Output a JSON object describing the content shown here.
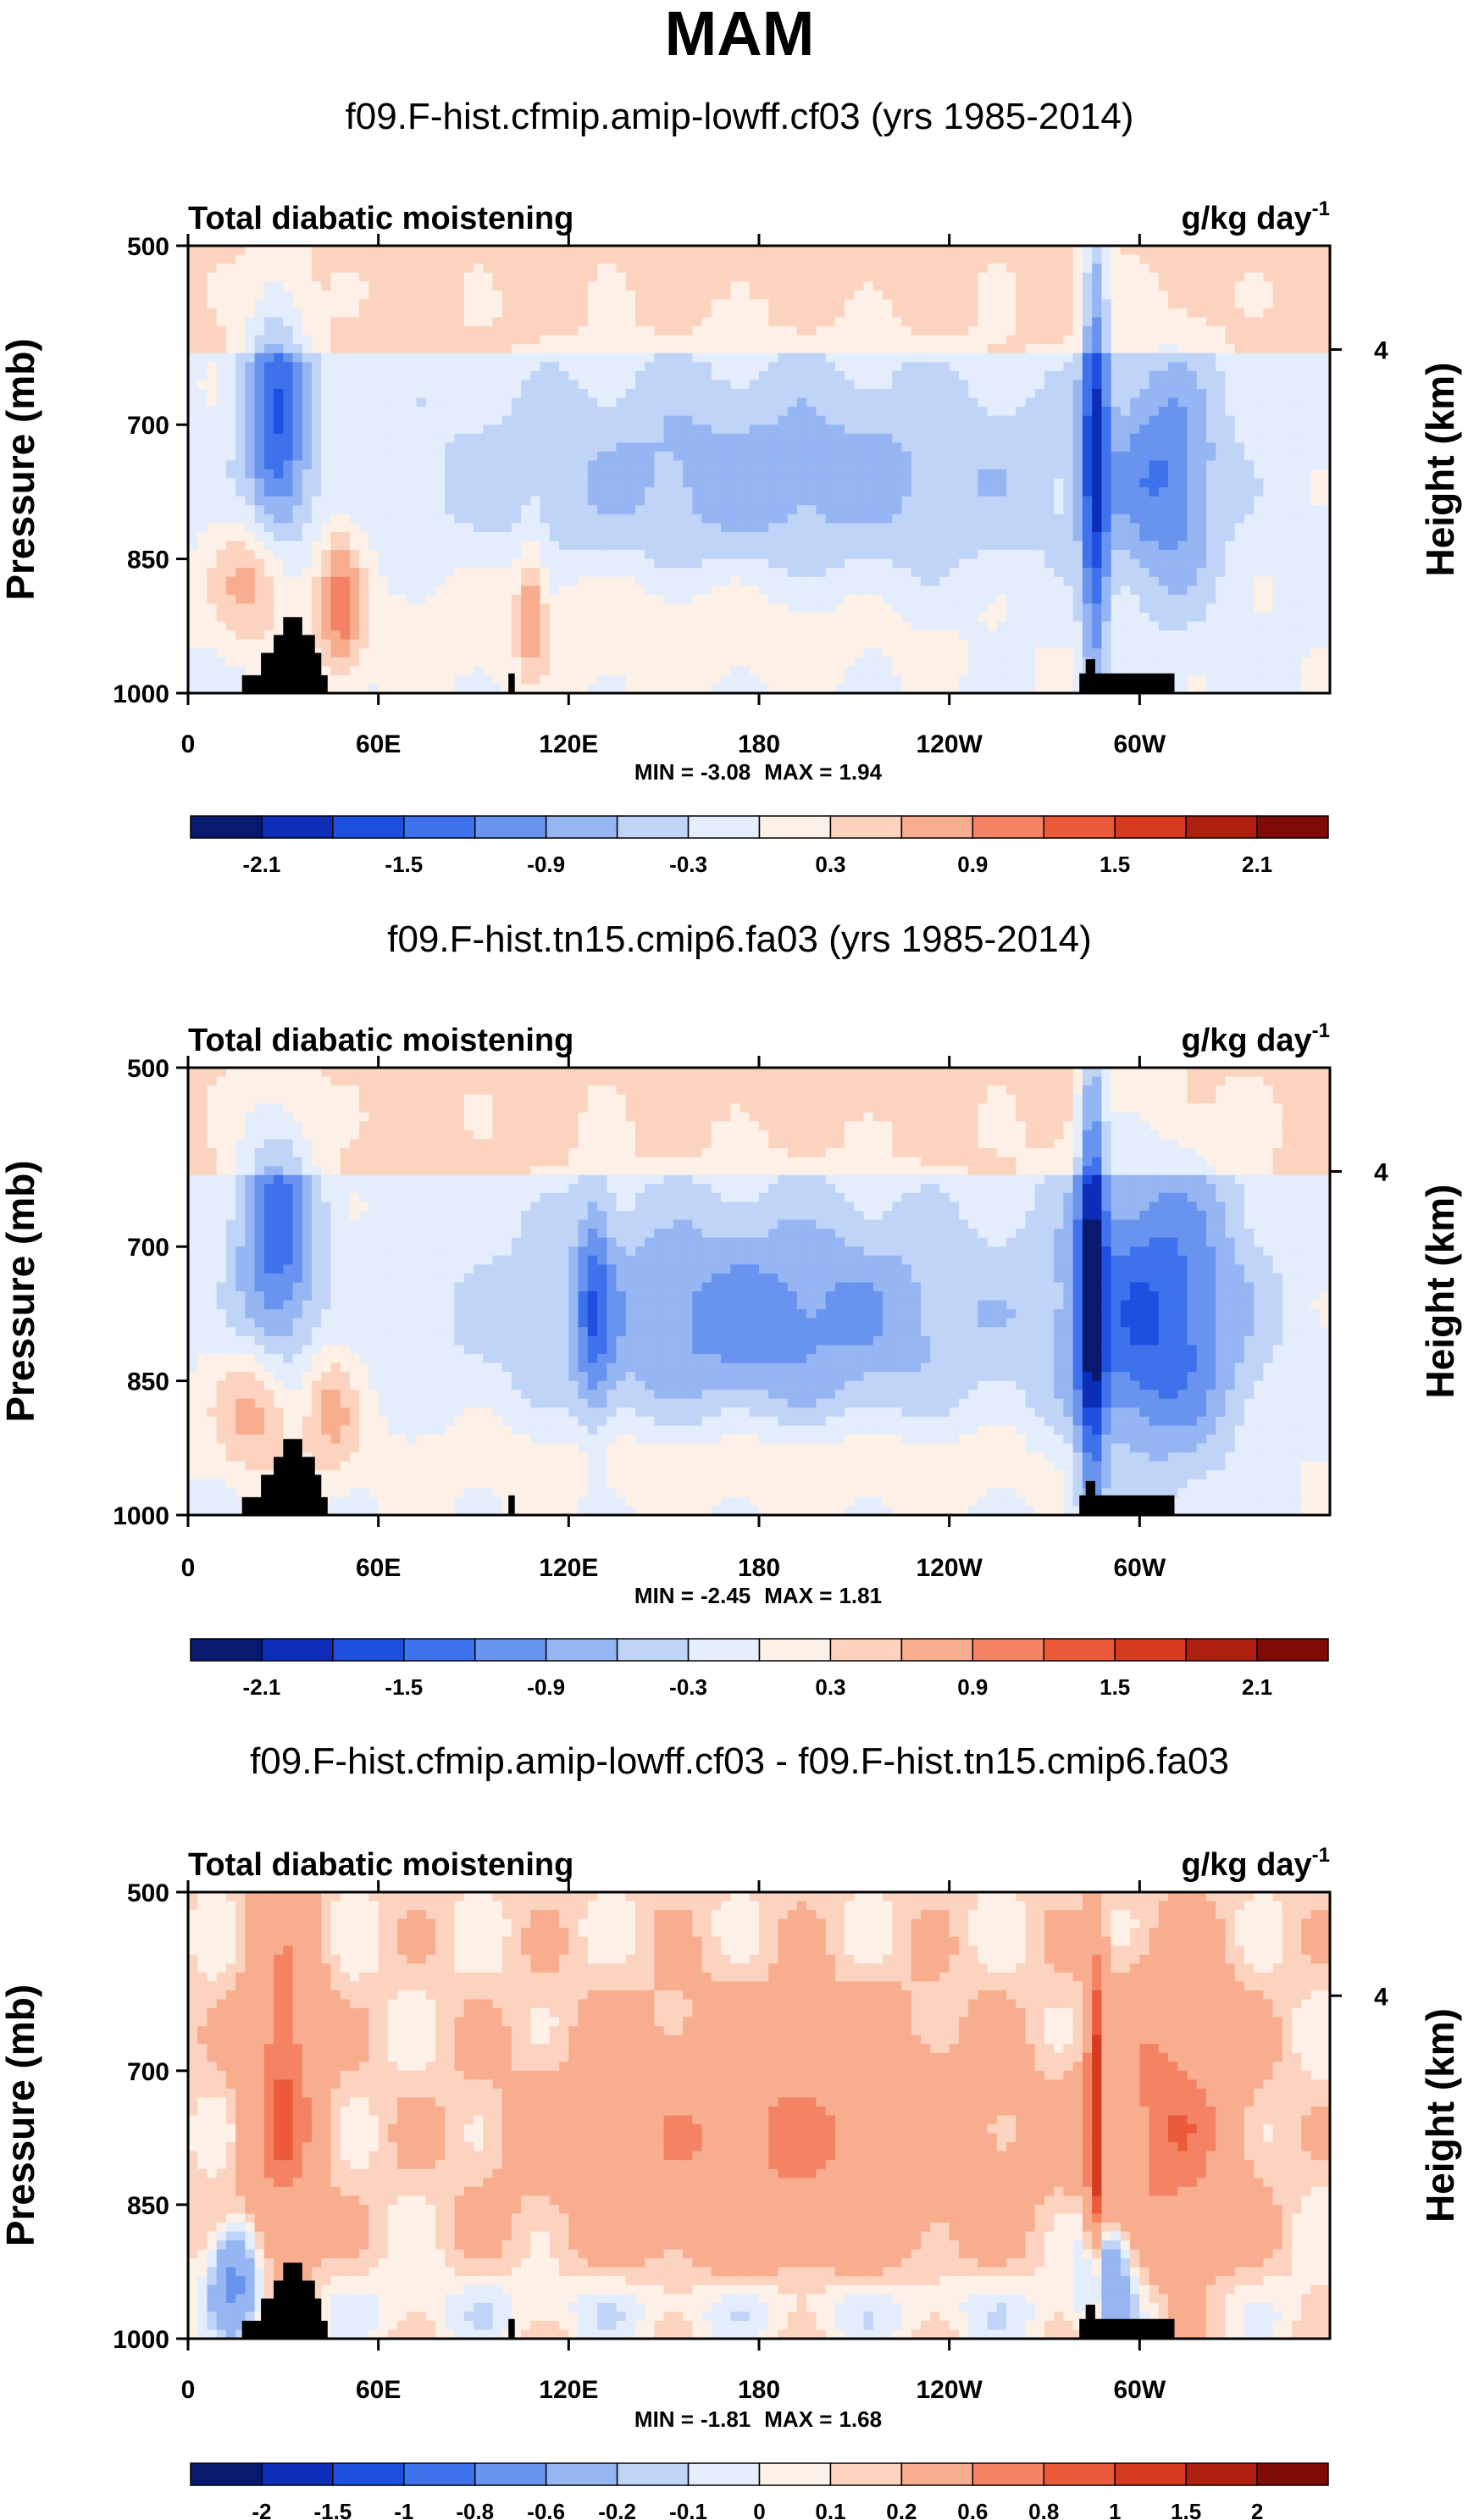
{
  "page_title": "MAM",
  "colors": {
    "palette_18": [
      "#08196f",
      "#0b2db8",
      "#1d4fe0",
      "#3d72ec",
      "#6894ef",
      "#95b5f3",
      "#c0d4f7",
      "#e3edfb",
      "#fdf0e6",
      "#fbd3bf",
      "#f8ad8f",
      "#f48364",
      "#ec5a3a",
      "#d73a1f",
      "#b0200f",
      "#7e0b06"
    ],
    "terrain": "#000000",
    "frame": "#000000"
  },
  "chart_data": [
    {
      "type": "heatmap",
      "title": "f09.F-hist.cfmip.amip-lowff.cf03 (yrs 1985-2014)",
      "left_label": "Total diabatic moistening",
      "units_base": "g/kg day",
      "units_exp": "-1",
      "ylabel": "Pressure (mb)",
      "ylabel_right": "Height (km)",
      "y_ticks": [
        500,
        700,
        850,
        1000
      ],
      "y_ticks_right": [
        "4"
      ],
      "x_ticks": [
        "0",
        "60E",
        "120E",
        "180",
        "120W",
        "60W"
      ],
      "x_range": [
        0,
        360
      ],
      "y_range": [
        500,
        1000
      ],
      "min_label": "MIN =",
      "min_value": "-3.08",
      "max_label": "MAX =",
      "max_value": "1.94",
      "colorbar_labels": [
        "-2.1",
        "-1.5",
        "-0.9",
        "-0.3",
        "0.3",
        "0.9",
        "1.5",
        "2.1"
      ],
      "features": [
        {
          "lon": 28,
          "p": 700,
          "v": -1.4,
          "sx": 7,
          "sp": 110
        },
        {
          "lon": 22,
          "p": 870,
          "v": 0.9,
          "sx": 9,
          "sp": 50
        },
        {
          "lon": 48,
          "p": 900,
          "v": 1.0,
          "sx": 5,
          "sp": 60
        },
        {
          "lon": 185,
          "p": 760,
          "v": -0.7,
          "sx": 75,
          "sp": 90
        },
        {
          "lon": 108,
          "p": 900,
          "v": 0.8,
          "sx": 3,
          "sp": 50
        },
        {
          "lon": 286,
          "p": 720,
          "v": -1.6,
          "sx": 3,
          "sp": 200
        },
        {
          "lon": 308,
          "p": 760,
          "v": -1.0,
          "sx": 12,
          "sp": 100
        },
        {
          "lon": 140,
          "p": 920,
          "v": 0.4,
          "sx": 70,
          "sp": 50
        }
      ]
    },
    {
      "type": "heatmap",
      "title": "f09.F-hist.tn15.cmip6.fa03 (yrs 1985-2014)",
      "left_label": "Total diabatic moistening",
      "units_base": "g/kg day",
      "units_exp": "-1",
      "ylabel": "Pressure (mb)",
      "ylabel_right": "Height (km)",
      "y_ticks": [
        500,
        700,
        850,
        1000
      ],
      "y_ticks_right": [
        "4"
      ],
      "x_ticks": [
        "0",
        "60E",
        "120E",
        "180",
        "120W",
        "60W"
      ],
      "x_range": [
        0,
        360
      ],
      "y_range": [
        500,
        1000
      ],
      "min_label": "MIN =",
      "min_value": "-2.45",
      "max_label": "MAX =",
      "max_value": "1.81",
      "colorbar_labels": [
        "-2.1",
        "-1.5",
        "-0.9",
        "-0.3",
        "0.3",
        "0.9",
        "1.5",
        "2.1"
      ],
      "features": [
        {
          "lon": 28,
          "p": 690,
          "v": -1.3,
          "sx": 9,
          "sp": 110
        },
        {
          "lon": 22,
          "p": 880,
          "v": 0.9,
          "sx": 9,
          "sp": 50
        },
        {
          "lon": 45,
          "p": 880,
          "v": 0.7,
          "sx": 6,
          "sp": 50
        },
        {
          "lon": 180,
          "p": 780,
          "v": -1.0,
          "sx": 55,
          "sp": 90
        },
        {
          "lon": 128,
          "p": 770,
          "v": -0.8,
          "sx": 4,
          "sp": 100
        },
        {
          "lon": 305,
          "p": 780,
          "v": -1.4,
          "sx": 20,
          "sp": 130
        },
        {
          "lon": 285,
          "p": 720,
          "v": -1.6,
          "sx": 3,
          "sp": 220
        },
        {
          "lon": 180,
          "p": 940,
          "v": 0.4,
          "sx": 90,
          "sp": 40
        }
      ]
    },
    {
      "type": "heatmap",
      "title": "f09.F-hist.cfmip.amip-lowff.cf03 - f09.F-hist.tn15.cmip6.fa03",
      "left_label": "Total diabatic moistening",
      "units_base": "g/kg day",
      "units_exp": "-1",
      "ylabel": "Pressure (mb)",
      "ylabel_right": "Height (km)",
      "y_ticks": [
        500,
        700,
        850,
        1000
      ],
      "y_ticks_right": [
        "4"
      ],
      "x_ticks": [
        "0",
        "60E",
        "120E",
        "180",
        "120W",
        "60W"
      ],
      "x_range": [
        0,
        360
      ],
      "y_range": [
        500,
        1000
      ],
      "min_label": "MIN =",
      "min_value": "-1.81",
      "max_label": "MAX =",
      "max_value": "1.68",
      "colorbar_labels": [
        "-2",
        "-1.5",
        "-1",
        "-0.8",
        "-0.6",
        "-0.2",
        "-0.1",
        "0",
        "0.1",
        "0.2",
        "0.6",
        "0.8",
        "1",
        "1.5",
        "2"
      ],
      "features": [
        {
          "lon": 30,
          "p": 720,
          "v": 0.7,
          "sx": 8,
          "sp": 140
        },
        {
          "lon": 185,
          "p": 780,
          "v": 0.5,
          "sx": 50,
          "sp": 100
        },
        {
          "lon": 310,
          "p": 760,
          "v": 0.6,
          "sx": 15,
          "sp": 120
        },
        {
          "lon": 286,
          "p": 750,
          "v": 0.9,
          "sx": 2,
          "sp": 150
        },
        {
          "lon": 180,
          "p": 965,
          "v": -0.2,
          "sx": 120,
          "sp": 30
        },
        {
          "lon": 15,
          "p": 930,
          "v": -0.8,
          "sx": 5,
          "sp": 40
        },
        {
          "lon": 290,
          "p": 920,
          "v": -0.7,
          "sx": 6,
          "sp": 40
        }
      ]
    }
  ]
}
